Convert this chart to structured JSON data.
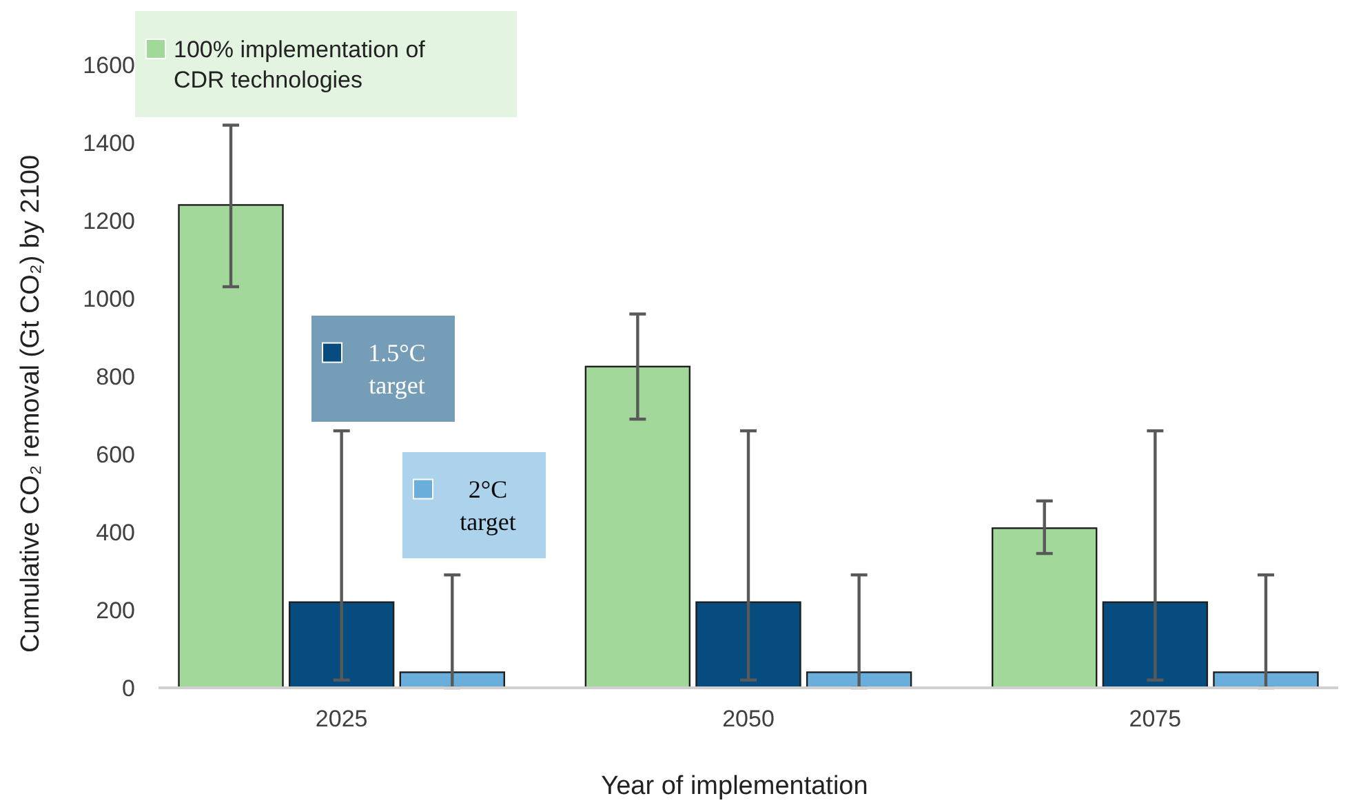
{
  "chart_data": {
    "type": "bar",
    "xlabel": "Year of implementation",
    "ylabel": "Cumulative CO₂ removal (Gt CO₂) by 2100",
    "categories": [
      "2025",
      "2050",
      "2075"
    ],
    "ylim": [
      0,
      1600
    ],
    "yticks": [
      0,
      200,
      400,
      600,
      800,
      1000,
      1200,
      1400,
      1600
    ],
    "grid": false,
    "legend": "top left",
    "series": [
      {
        "name": "100% implementation of CDR technologies",
        "color": "#a2d99a",
        "values": [
          1240,
          825,
          410
        ],
        "errors": [
          [
            1030,
            1445
          ],
          [
            690,
            960
          ],
          [
            345,
            480
          ]
        ]
      },
      {
        "name": "1.5°C target",
        "color": "#064c7e",
        "values": [
          220,
          220,
          220
        ],
        "errors": [
          [
            20,
            660
          ],
          [
            20,
            660
          ],
          [
            20,
            660
          ]
        ]
      },
      {
        "name": "2°C target",
        "color": "#6aafdc",
        "values": [
          40,
          40,
          40
        ],
        "errors": [
          [
            0,
            290
          ],
          [
            0,
            290
          ],
          [
            0,
            290
          ]
        ]
      }
    ]
  }
}
